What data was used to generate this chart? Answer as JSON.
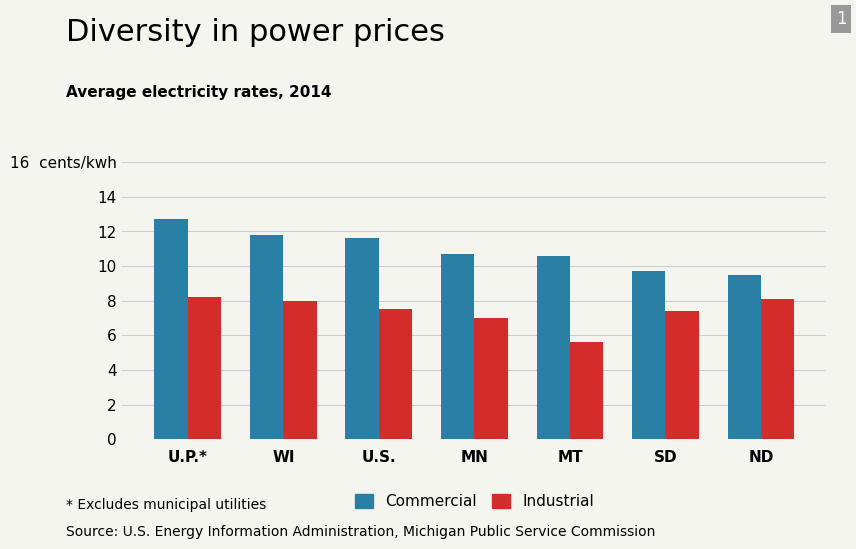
{
  "title": "Diversity in power prices",
  "subtitle": "Average electricity rates, 2014",
  "categories": [
    "U.P.*",
    "WI",
    "U.S.",
    "MN",
    "MT",
    "SD",
    "ND"
  ],
  "commercial": [
    12.7,
    11.8,
    11.6,
    10.7,
    10.6,
    9.7,
    9.5
  ],
  "industrial": [
    8.2,
    8.0,
    7.5,
    7.0,
    5.6,
    7.4,
    8.1
  ],
  "commercial_color": "#2a7fa5",
  "industrial_color": "#d42b2b",
  "ylim": [
    0,
    16
  ],
  "yticks": [
    0,
    2,
    4,
    6,
    8,
    10,
    12,
    14,
    16
  ],
  "ytick_labels": [
    "0",
    "2",
    "4",
    "6",
    "8",
    "10",
    "12",
    "14",
    "16  cents/kwh"
  ],
  "bar_width": 0.35,
  "legend_labels": [
    "Commercial",
    "Industrial"
  ],
  "footnote1": "* Excludes municipal utilities",
  "footnote2": "Source: U.S. Energy Information Administration, Michigan Public Service Commission",
  "title_fontsize": 22,
  "subtitle_fontsize": 11,
  "tick_fontsize": 11,
  "legend_fontsize": 11,
  "footnote_fontsize": 10,
  "background_color": "#f5f5f0",
  "corner_label": "1",
  "grid_color": "#cccccc"
}
